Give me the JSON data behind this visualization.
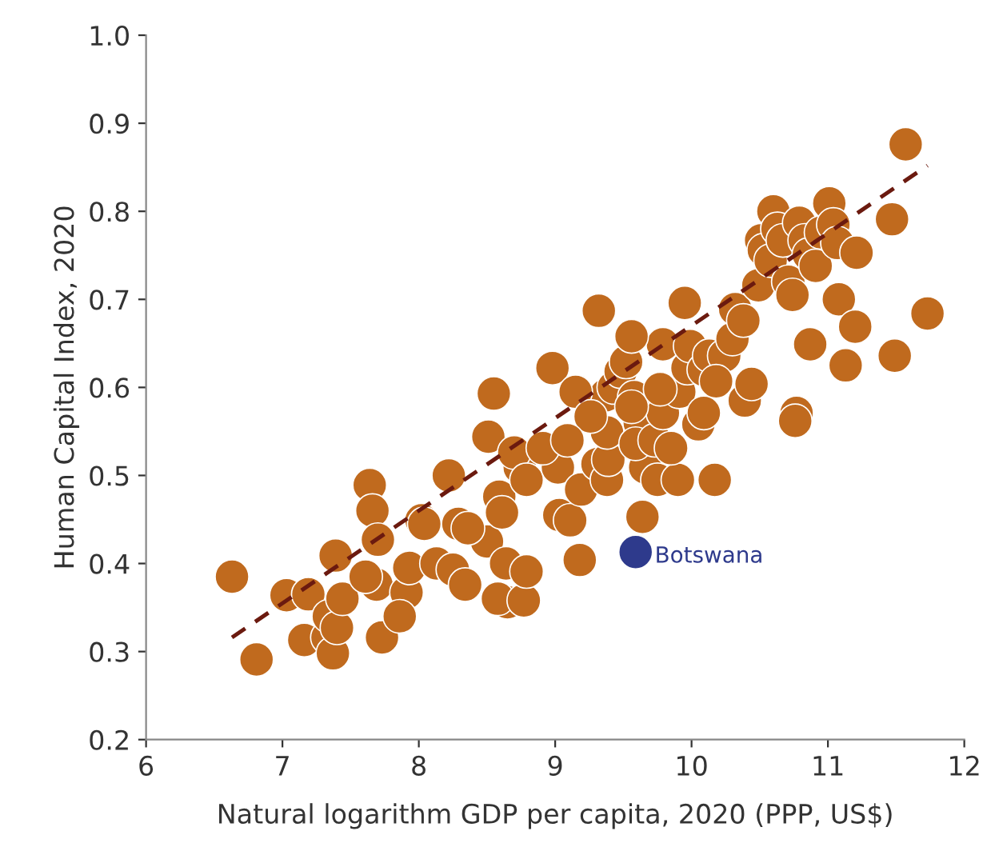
{
  "chart_data": {
    "type": "scatter",
    "xlabel": "Natural logarithm GDP per capita, 2020 (PPP, US$)",
    "ylabel": "Human Capital Index, 2020",
    "xlim": [
      6,
      12
    ],
    "xticks": [
      6,
      7,
      8,
      9,
      10,
      11,
      12
    ],
    "ylim": [
      0.2,
      1.0
    ],
    "yticks": [
      0.2,
      0.3,
      0.4,
      0.5,
      0.6,
      0.7,
      0.8,
      0.9,
      {
        "value": 1.0,
        "label": "1.0"
      }
    ],
    "grid": false,
    "marker": "circle",
    "series": [
      {
        "color": "#c06a1e",
        "x": [
          6.63,
          6.81,
          7.03,
          7.19,
          7.16,
          7.33,
          7.34,
          7.37,
          7.39,
          7.4,
          7.44,
          7.64,
          7.66,
          7.7,
          7.73,
          7.69,
          7.61,
          7.91,
          7.93,
          8.02,
          8.04,
          8.13,
          8.22,
          8.29,
          8.25,
          8.34,
          8.5,
          8.51,
          8.55,
          8.59,
          8.61,
          8.64,
          8.65,
          8.58,
          8.77,
          8.74,
          8.7,
          8.79,
          8.79,
          8.98,
          9.02,
          9.03,
          9.11,
          9.18,
          9.19,
          9.32,
          9.31,
          9.38,
          9.39,
          9.37,
          9.38,
          9.43,
          9.48,
          9.52,
          9.58,
          9.62,
          9.64,
          9.66,
          9.59,
          9.73,
          9.75,
          9.79,
          9.79,
          9.9,
          9.91,
          9.95,
          9.97,
          9.99,
          10.09,
          10.13,
          10.17,
          10.05,
          10.24,
          10.3,
          10.32,
          10.38,
          10.39,
          10.44,
          10.49,
          10.51,
          10.53,
          10.58,
          10.6,
          10.63,
          10.67,
          10.71,
          10.74,
          10.77,
          10.76,
          10.79,
          10.83,
          10.86,
          10.91,
          10.95,
          11.01,
          11.04,
          11.07,
          10.87,
          11.08,
          11.13,
          11.21,
          11.2,
          11.47,
          11.49,
          11.57,
          11.73,
          9.56,
          9.77,
          10.18,
          9.15,
          9.26,
          8.91,
          8.36,
          7.86,
          9.56,
          9.85,
          9.09,
          10.09
        ],
        "values": [
          0.385,
          0.291,
          0.364,
          0.365,
          0.313,
          0.316,
          0.34,
          0.298,
          0.409,
          0.327,
          0.36,
          0.489,
          0.46,
          0.427,
          0.316,
          0.376,
          0.385,
          0.367,
          0.395,
          0.449,
          0.445,
          0.4,
          0.5,
          0.445,
          0.393,
          0.376,
          0.425,
          0.544,
          0.593,
          0.476,
          0.458,
          0.4,
          0.356,
          0.36,
          0.358,
          0.509,
          0.526,
          0.391,
          0.495,
          0.622,
          0.509,
          0.455,
          0.449,
          0.404,
          0.484,
          0.687,
          0.513,
          0.495,
          0.518,
          0.591,
          0.549,
          0.6,
          0.618,
          0.629,
          0.589,
          0.56,
          0.453,
          0.509,
          0.536,
          0.54,
          0.495,
          0.571,
          0.649,
          0.495,
          0.595,
          0.696,
          0.622,
          0.647,
          0.62,
          0.636,
          0.495,
          0.558,
          0.636,
          0.655,
          0.689,
          0.676,
          0.585,
          0.604,
          0.716,
          0.767,
          0.756,
          0.744,
          0.8,
          0.78,
          0.767,
          0.72,
          0.705,
          0.571,
          0.562,
          0.787,
          0.767,
          0.751,
          0.738,
          0.776,
          0.809,
          0.785,
          0.764,
          0.649,
          0.7,
          0.625,
          0.753,
          0.669,
          0.791,
          0.636,
          0.876,
          0.684,
          0.578,
          0.598,
          0.607,
          0.595,
          0.567,
          0.531,
          0.44,
          0.34,
          0.658,
          0.531,
          0.54,
          0.571
        ]
      },
      {
        "name": "Botswana",
        "color": "#2e3a8c",
        "x": [
          9.59
        ],
        "values": [
          0.413
        ]
      },
      {
        "type": "line",
        "line_style": "dashed",
        "marker": "none",
        "color": "#6b1a0f",
        "x": [
          6.63,
          11.73
        ],
        "values": [
          0.316,
          0.852
        ]
      }
    ]
  }
}
